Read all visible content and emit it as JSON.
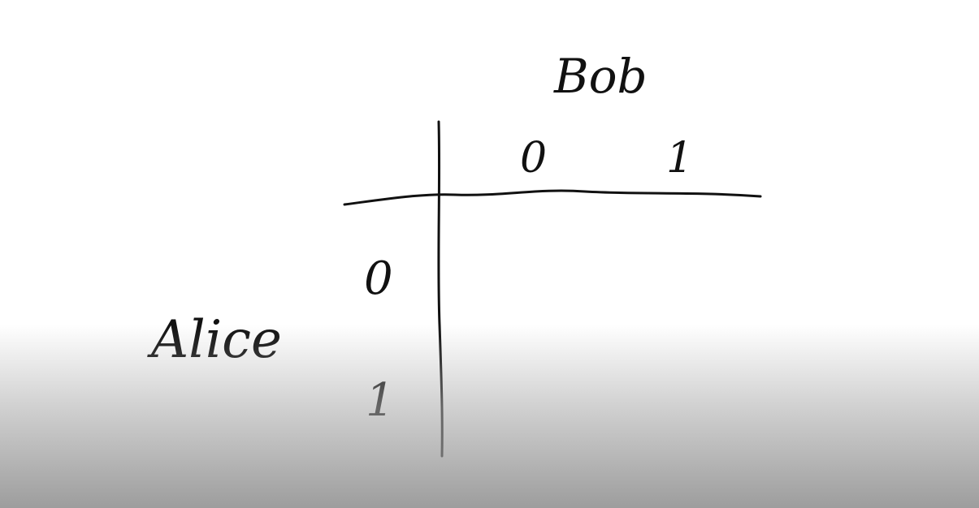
{
  "board": {
    "background_color": "#ffffff",
    "ink_color": "#111111",
    "column_player": "Bob",
    "row_player": "Alice",
    "column_labels": [
      "0",
      "1"
    ],
    "row_labels": [
      "0",
      "1"
    ]
  }
}
